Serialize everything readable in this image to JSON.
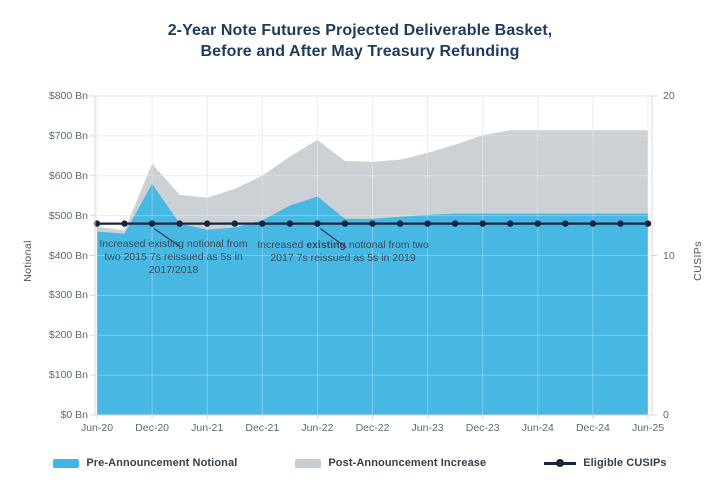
{
  "title": {
    "line1": "2-Year Note Futures Projected Deliverable Basket,",
    "line2": "Before and After May Treasury Refunding"
  },
  "axes": {
    "left_title": "Notional",
    "right_title": "CUSIPs",
    "left_tick_labels": [
      "$800 Bn",
      "$700 Bn",
      "$600 Bn",
      "$500 Bn",
      "$400 Bn",
      "$300 Bn",
      "$200 Bn",
      "$100 Bn",
      "$0 Bn"
    ],
    "left_tick_values": [
      800,
      700,
      600,
      500,
      400,
      300,
      200,
      100,
      0
    ],
    "right_tick_labels": [
      "20",
      "10",
      "0"
    ],
    "right_tick_values": [
      20,
      10,
      0
    ],
    "x_tick_labels": [
      "Jun-20",
      "Dec-20",
      "Jun-21",
      "Dec-21",
      "Jun-22",
      "Dec-22",
      "Jun-23",
      "Dec-23",
      "Jun-24",
      "Dec-24",
      "Jun-25"
    ]
  },
  "chart_data": {
    "type": "area",
    "title": "2-Year Note Futures Projected Deliverable Basket, Before and After May Treasury Refunding",
    "x": [
      "Jun-20",
      "Sep-20",
      "Dec-20",
      "Mar-21",
      "Jun-21",
      "Sep-21",
      "Dec-21",
      "Mar-22",
      "Jun-22",
      "Sep-22",
      "Dec-22",
      "Mar-23",
      "Jun-23",
      "Sep-23",
      "Dec-23",
      "Mar-24",
      "Jun-24",
      "Sep-24",
      "Dec-24",
      "Mar-25",
      "Jun-25"
    ],
    "xlabel": "",
    "ylabel_left": "Notional ($ Bn)",
    "ylabel_right": "CUSIPs",
    "ylim_left": [
      0,
      800
    ],
    "ylim_right": [
      0,
      20
    ],
    "grid": true,
    "legend_position": "bottom",
    "series": [
      {
        "name": "Pre-Announcement Notional",
        "axis": "left",
        "style": "area",
        "color": "#47B7E4",
        "values": [
          460,
          455,
          580,
          480,
          465,
          470,
          488,
          525,
          548,
          492,
          492,
          497,
          502,
          505,
          505,
          505,
          505,
          505,
          505,
          505,
          505
        ]
      },
      {
        "name": "Post-Announcement Total (Pre-Announcement + Increase)",
        "axis": "left",
        "style": "area",
        "color": "#CBD1D4",
        "values": [
          472,
          463,
          630,
          552,
          545,
          567,
          600,
          648,
          690,
          637,
          635,
          640,
          657,
          678,
          702,
          714,
          714,
          714,
          714,
          714,
          714
        ]
      },
      {
        "name": "Eligible CUSIPs",
        "axis": "right",
        "style": "line-dots",
        "color": "#16243D",
        "values": [
          12,
          12,
          12,
          12,
          12,
          12,
          12,
          12,
          12,
          12,
          12,
          12,
          12,
          12,
          12,
          12,
          12,
          12,
          12,
          12,
          12
        ]
      }
    ]
  },
  "annotations": {
    "ann1": {
      "text": "Increased existing notional from two 2015 7s reissued as 5s in 2017/2018"
    },
    "ann2": {
      "prefix": "Increased ",
      "bold": "existing",
      "suffix": " notional from two 2017 7s reissued as 5s in 2019"
    }
  },
  "legend": {
    "items": [
      {
        "label": "Pre-Announcement Notional",
        "color": "#41B6E6"
      },
      {
        "label": "Post-Announcement Increase",
        "color": "#C6CDD2"
      },
      {
        "label": "Eligible CUSIPs",
        "color": "#16243D"
      }
    ]
  },
  "colors": {
    "pre_area": "#47B7E4",
    "post_area": "#CBD1D4",
    "cusips_line": "#16243D",
    "title_text": "#1E3A5F",
    "tick_text": "#5E6A75",
    "gridline": "#E4E7E9",
    "axis_line": "#D6D9DB",
    "annotation_text": "#3C4B57"
  }
}
